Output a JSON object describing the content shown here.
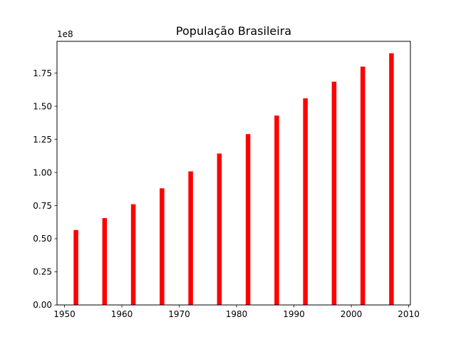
{
  "chart_data": {
    "type": "bar",
    "title": "População Brasileira",
    "x": [
      1952,
      1957,
      1962,
      1967,
      1972,
      1977,
      1982,
      1987,
      1992,
      1997,
      2002,
      2007
    ],
    "values": [
      56602560,
      65551171,
      76039390,
      88049823,
      100840058,
      114313951,
      128962939,
      142938076,
      155975974,
      168546719,
      179914212,
      190010647
    ],
    "xlim": [
      1948.7,
      2010.3
    ],
    "ylim": [
      0,
      199000000
    ],
    "xticks": [
      "1950",
      "1960",
      "1970",
      "1980",
      "1990",
      "2000",
      "2010"
    ],
    "yticks": [
      "0.00",
      "0.25",
      "0.50",
      "0.75",
      "1.00",
      "1.25",
      "1.50",
      "1.75"
    ],
    "y_scale_label": "1e8",
    "bar_color": "#ff0000",
    "grid": false,
    "legend": "none"
  }
}
